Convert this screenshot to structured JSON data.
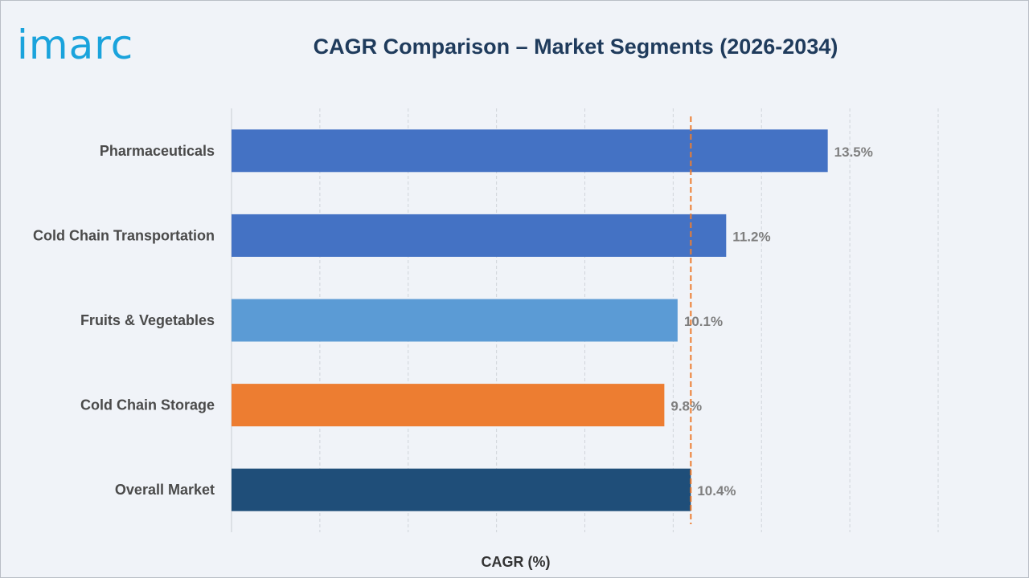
{
  "brand": {
    "logo_text": "imarc"
  },
  "chart_data": {
    "type": "bar",
    "orientation": "horizontal",
    "title": "CAGR Comparison – Market Segments (2026-2034)",
    "xlabel": "CAGR (%)",
    "ylabel": "",
    "categories": [
      "Pharmaceuticals",
      "Cold Chain Transportation",
      "Fruits & Vegetables",
      "Cold Chain Storage",
      "Overall Market"
    ],
    "values": [
      13.5,
      11.2,
      10.1,
      9.8,
      10.4
    ],
    "value_labels": [
      "13.5%",
      "11.2%",
      "10.1%",
      "9.8%",
      "10.4%"
    ],
    "bar_colors": [
      "#4472c4",
      "#4472c4",
      "#5b9bd5",
      "#ed7d31",
      "#1f4e79"
    ],
    "reference_line": {
      "value": 10.4,
      "style": "dashed",
      "color": "#ed7d31"
    },
    "xlim": [
      0,
      16
    ],
    "grid": "vertical dashed",
    "legend": "none"
  }
}
